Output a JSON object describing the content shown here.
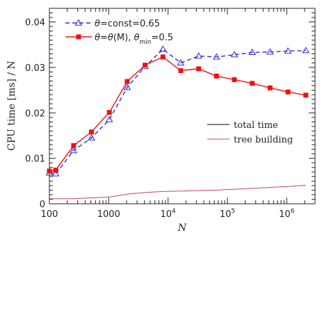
{
  "chart_data": {
    "type": "line",
    "xscale": "log",
    "xlim": [
      100,
      3000000
    ],
    "ylim": [
      0,
      0.043
    ],
    "xlabel": "N",
    "ylabel": "CPU time [ms] / N",
    "x_tick_labels": [
      {
        "value": 100,
        "base": "100",
        "exp": ""
      },
      {
        "value": 1000,
        "base": "1000",
        "exp": ""
      },
      {
        "value": 10000,
        "base": "10",
        "exp": "4"
      },
      {
        "value": 100000,
        "base": "10",
        "exp": "5"
      },
      {
        "value": 1000000,
        "base": "10",
        "exp": "6"
      }
    ],
    "y_ticks": [
      0,
      0.01,
      0.02,
      0.03,
      0.04
    ],
    "y_tick_labels": [
      "0",
      "0.01",
      "0.02",
      "0.03",
      "0.04"
    ],
    "series": [
      {
        "name_parts": [
          "θ",
          "=const=0.65"
        ],
        "color": "#2a2ad8",
        "style": "dashed",
        "marker": "open-triangle",
        "x": [
          100,
          128,
          256,
          512,
          1024,
          2048,
          4096,
          8192,
          16384,
          32768,
          65536,
          131072,
          262144,
          524288,
          1048576,
          2097152
        ],
        "y": [
          0.0068,
          0.0066,
          0.0117,
          0.0145,
          0.0185,
          0.0256,
          0.0302,
          0.034,
          0.031,
          0.0325,
          0.0323,
          0.0328,
          0.0333,
          0.0334,
          0.0336,
          0.0337
        ]
      },
      {
        "name_parts": [
          "θ",
          "=",
          "θ",
          "(M), ",
          "θ",
          "min",
          "=0.5"
        ],
        "color": "#ee1111",
        "style": "solid",
        "marker": "filled-square",
        "x": [
          100,
          128,
          256,
          512,
          1024,
          2048,
          4096,
          8192,
          16384,
          32768,
          65536,
          131072,
          262144,
          524288,
          1048576,
          2097152
        ],
        "y": [
          0.0072,
          0.0074,
          0.0128,
          0.0158,
          0.0201,
          0.0269,
          0.0305,
          0.0323,
          0.0293,
          0.0297,
          0.0281,
          0.0273,
          0.0265,
          0.0255,
          0.0246,
          0.0239
        ]
      },
      {
        "name": "tree building",
        "color": "#c0407a",
        "style": "solid",
        "marker": "none",
        "x": [
          100,
          128,
          256,
          512,
          1024,
          2048,
          4096,
          8192,
          16384,
          32768,
          65536,
          131072,
          262144,
          524288,
          1048576,
          2097152
        ],
        "y": [
          0.0011,
          0.0011,
          0.0011,
          0.0013,
          0.0015,
          0.0021,
          0.0025,
          0.0027,
          0.0028,
          0.0029,
          0.003,
          0.0032,
          0.0034,
          0.0036,
          0.0038,
          0.0041
        ]
      }
    ],
    "line_style_legend": [
      {
        "label": "total time",
        "color": "#000000"
      },
      {
        "label": "tree building",
        "color": "#c0407a"
      }
    ]
  }
}
